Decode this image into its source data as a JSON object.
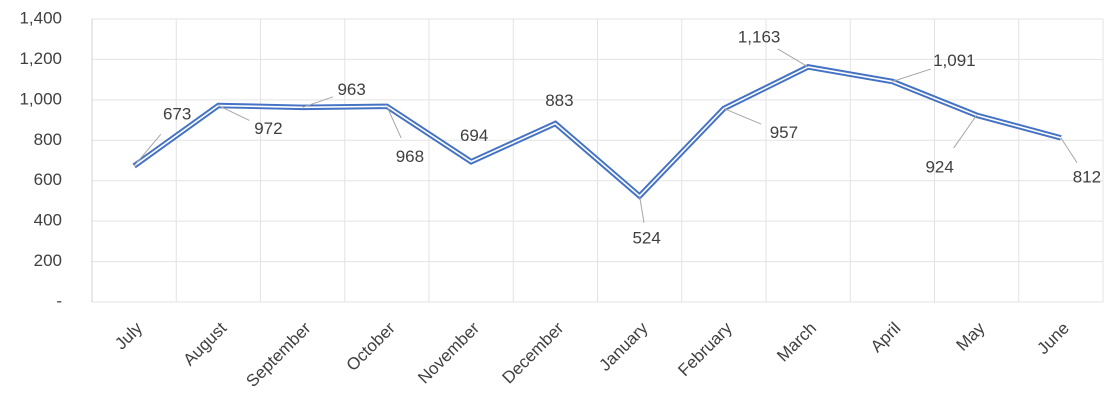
{
  "chart_data": {
    "type": "line",
    "categories": [
      "July",
      "August",
      "September",
      "October",
      "November",
      "December",
      "January",
      "February",
      "March",
      "April",
      "May",
      "June"
    ],
    "values": [
      673,
      972,
      963,
      968,
      694,
      883,
      524,
      957,
      1163,
      1091,
      924,
      812
    ],
    "value_labels": [
      "673",
      "972",
      "963",
      "968",
      "694",
      "883",
      "524",
      "957",
      "1,163",
      "1,091",
      "924",
      "812"
    ],
    "color": "#4472c4",
    "ylim": [
      0,
      1400
    ],
    "yticks": [
      {
        "value": 0,
        "label": "-"
      },
      200,
      400,
      600,
      800,
      {
        "value": 1000,
        "label": "1,000"
      },
      {
        "value": 1200,
        "label": "1,200"
      },
      {
        "value": 1400,
        "label": "1,400"
      }
    ],
    "grid": true
  }
}
